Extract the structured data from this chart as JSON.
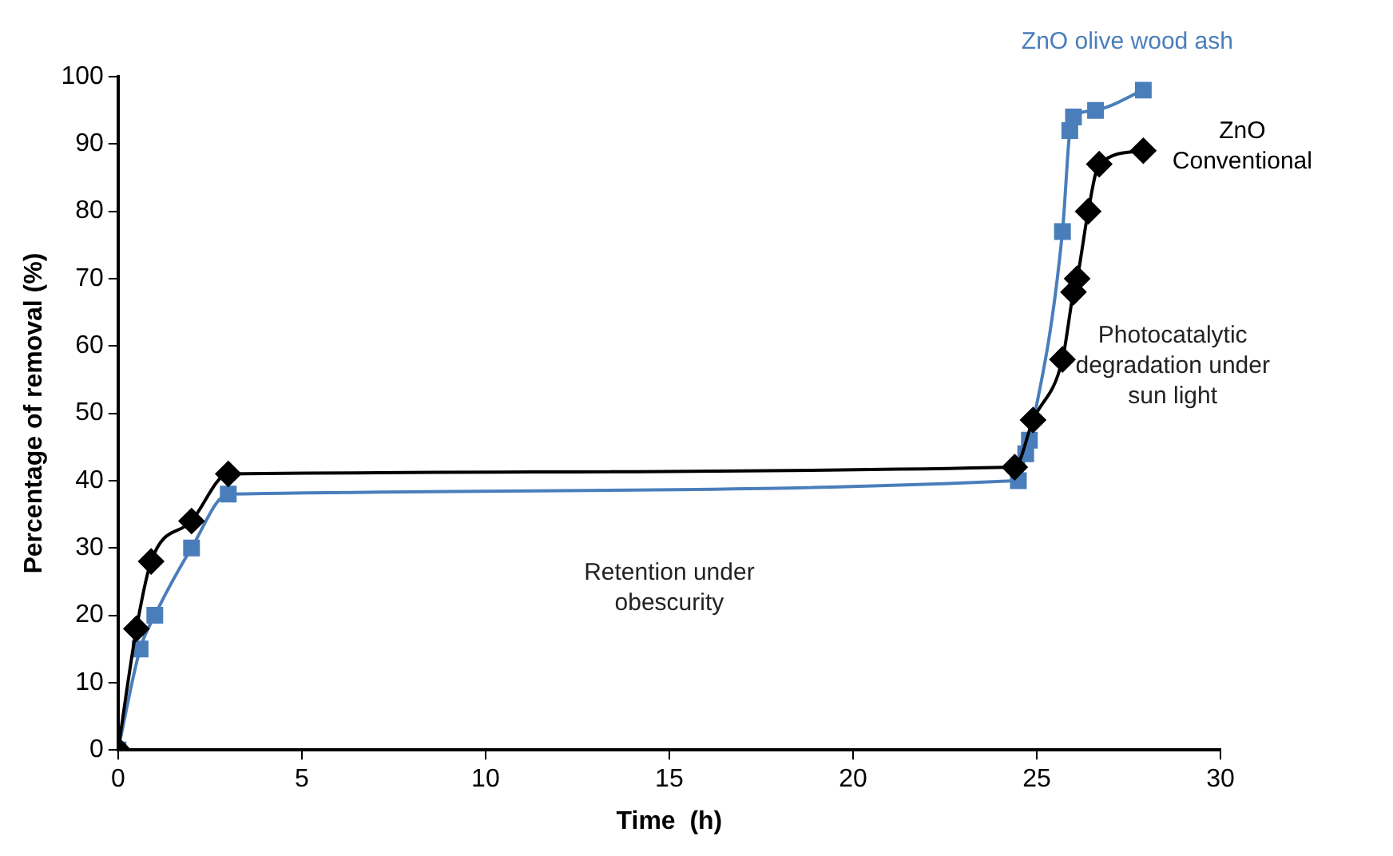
{
  "chart_data": {
    "type": "line",
    "xlabel": "Time  (h)",
    "ylabel": "Percentage of removal (%)",
    "xlim": [
      0,
      30
    ],
    "xticks": [
      0,
      5,
      10,
      15,
      20,
      25,
      30
    ],
    "ylim": [
      0,
      100
    ],
    "yticks": [
      0,
      10,
      20,
      30,
      40,
      50,
      60,
      70,
      80,
      90,
      100
    ],
    "grid": false,
    "legend": false,
    "annotations": [
      "Retention under obescurity",
      "Photocatalytic degradation under sun light"
    ],
    "series": [
      {
        "name": "ZnO Conventional",
        "color": "#000000",
        "marker": "diamond",
        "x": [
          0,
          0.5,
          0.9,
          2,
          3,
          24.4,
          24.9,
          25.7,
          26,
          26.1,
          26.4,
          26.7,
          27.9
        ],
        "values": [
          0,
          18,
          28,
          34,
          41,
          42,
          49,
          58,
          68,
          70,
          80,
          87,
          89
        ]
      },
      {
        "name": "ZnO olive wood ash",
        "color": "#4a7ebb",
        "marker": "square",
        "x": [
          0,
          0.6,
          1,
          2,
          3,
          24.5,
          24.7,
          24.8,
          25.7,
          25.9,
          26,
          26.6,
          27.9
        ],
        "values": [
          0,
          15,
          20,
          30,
          38,
          40,
          44,
          46,
          77,
          92,
          94,
          95,
          98
        ]
      }
    ]
  }
}
